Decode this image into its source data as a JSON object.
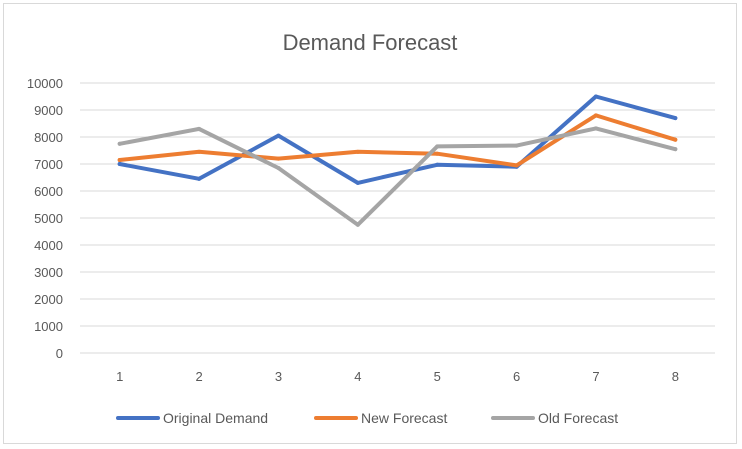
{
  "chart_data": {
    "type": "line",
    "title": "Demand Forecast",
    "xlabel": "",
    "ylabel": "",
    "categories": [
      "1",
      "2",
      "3",
      "4",
      "5",
      "6",
      "7",
      "8"
    ],
    "ylim": [
      0,
      10000
    ],
    "yticks": [
      "0",
      "1000",
      "2000",
      "3000",
      "4000",
      "5000",
      "6000",
      "7000",
      "8000",
      "9000",
      "10000"
    ],
    "grid": true,
    "legend_position": "bottom",
    "series": [
      {
        "name": "Original Demand",
        "color": "#4472c4",
        "values": [
          7000,
          6450,
          8050,
          6300,
          6970,
          6900,
          9500,
          8700
        ]
      },
      {
        "name": "New Forecast",
        "color": "#ed7d31",
        "values": [
          7150,
          7450,
          7200,
          7450,
          7380,
          6950,
          8800,
          7900
        ]
      },
      {
        "name": "Old Forecast",
        "color": "#a5a5a5",
        "values": [
          7750,
          8300,
          6850,
          4750,
          7650,
          7680,
          8320,
          7550
        ]
      }
    ]
  }
}
